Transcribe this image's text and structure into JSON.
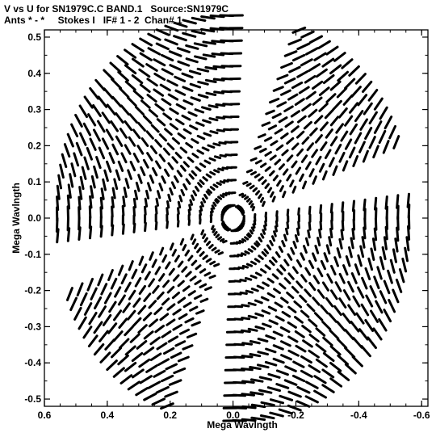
{
  "header": {
    "line1": "V vs U for SN1979C.C BAND.1   Source:SN1979C",
    "line2": "Ants * - *     Stokes I   IF# 1 - 2  Chan# 1"
  },
  "chart_data": {
    "type": "scatter",
    "title": "V vs U for SN1979C.C BAND.1   Source:SN1979C",
    "subtitle": "Ants * - *     Stokes I   IF# 1 - 2  Chan# 1",
    "xlabel": "Mega Wavlngth",
    "ylabel": "Mega Wavlngth",
    "xlim": [
      0.6,
      -0.62
    ],
    "ylim": [
      -0.52,
      0.52
    ],
    "x_ticks": [
      0.6,
      0.4,
      0.2,
      0.0,
      -0.2,
      -0.4,
      -0.6
    ],
    "x_tick_labels": [
      "0.6",
      "0.4",
      "0.2",
      "0.0",
      "-0.2",
      "-0.4",
      "-0.6"
    ],
    "y_ticks": [
      0.5,
      0.4,
      0.3,
      0.2,
      0.1,
      0.0,
      -0.1,
      -0.2,
      -0.3,
      -0.4,
      -0.5
    ],
    "y_tick_labels": [
      "0.5",
      "0.4",
      "0.3",
      "0.2",
      "0.1",
      "0.0",
      "-0.1",
      "-0.2",
      "-0.3",
      "-0.4",
      "-0.5"
    ],
    "grid": false,
    "pattern": "six-pointed star of uv-coverage arcs (symmetric)",
    "baseline_radii": [
      0.035,
      0.07,
      0.105,
      0.14,
      0.175,
      0.21,
      0.245,
      0.28,
      0.315,
      0.35,
      0.385,
      0.42,
      0.455,
      0.49,
      0.525,
      0.56
    ],
    "arm_directions_deg": [
      18,
      68,
      135,
      198,
      248,
      315
    ],
    "arm_extent_deg": 46,
    "star_tips": [
      {
        "u": 0.56,
        "v": 0.09
      },
      {
        "u": 0.19,
        "v": 0.49
      },
      {
        "u": -0.4,
        "v": 0.4
      },
      {
        "u": -0.58,
        "v": -0.09
      },
      {
        "u": -0.19,
        "v": -0.49
      },
      {
        "u": 0.4,
        "v": -0.4
      }
    ],
    "marker_color": "#000000"
  }
}
